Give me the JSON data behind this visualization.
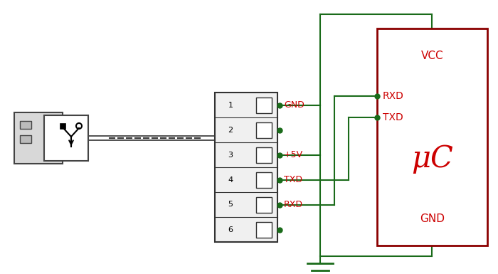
{
  "bg_color": "#ffffff",
  "wire_colors": [
    "#000000",
    "#8B4513",
    "#ff0000",
    "#ff8c00",
    "#008000",
    "#ffff00"
  ],
  "signal_color": "#cc0000",
  "green_color": "#1a6b1a",
  "uc_color": "#8b0000",
  "uc_label": "μC",
  "vcc_label": "VCC",
  "gnd_label": "GND",
  "rxd_label": "RXD",
  "txd_label": "TXD",
  "pin_signals": [
    "GND",
    "",
    "+5V",
    "TXD",
    "RXD",
    ""
  ]
}
